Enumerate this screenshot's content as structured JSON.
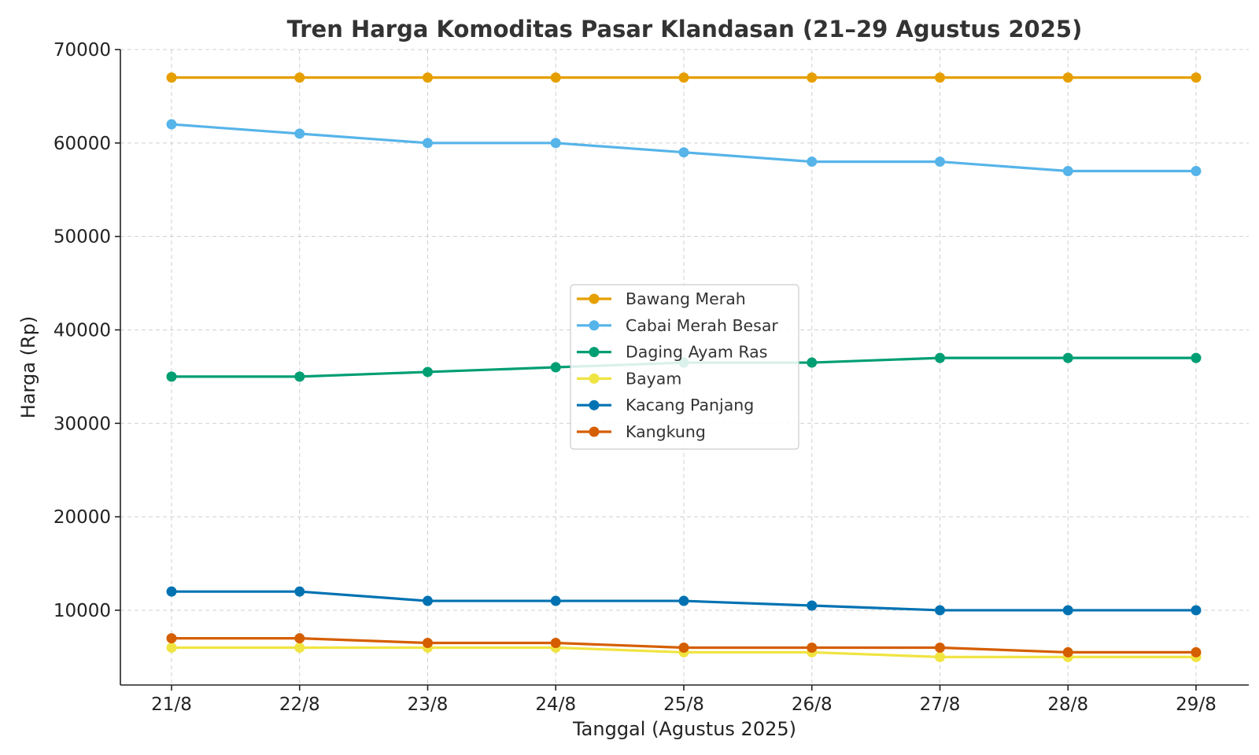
{
  "chart_data": {
    "type": "line",
    "title": "Tren Harga Komoditas Pasar Klandasan (21–29 Agustus 2025)",
    "xlabel": "Tanggal (Agustus 2025)",
    "ylabel": "Harga (Rp)",
    "categories": [
      "21/8",
      "22/8",
      "23/8",
      "24/8",
      "25/8",
      "26/8",
      "27/8",
      "28/8",
      "29/8"
    ],
    "ylim": [
      2000,
      70000
    ],
    "yticks": [
      "10000",
      "20000",
      "30000",
      "40000",
      "50000",
      "60000",
      "70000"
    ],
    "grid": true,
    "legend_position": "center",
    "series": [
      {
        "name": "Bawang Merah",
        "color": "#E69F00",
        "values": [
          67000,
          67000,
          67000,
          67000,
          67000,
          67000,
          67000,
          67000,
          67000
        ]
      },
      {
        "name": "Cabai Merah Besar",
        "color": "#56B4E9",
        "values": [
          62000,
          61000,
          60000,
          60000,
          59000,
          58000,
          58000,
          57000,
          57000
        ]
      },
      {
        "name": "Daging Ayam Ras",
        "color": "#009E73",
        "values": [
          35000,
          35000,
          35500,
          36000,
          36500,
          36500,
          37000,
          37000,
          37000
        ]
      },
      {
        "name": "Bayam",
        "color": "#F0E442",
        "values": [
          6000,
          6000,
          6000,
          6000,
          5500,
          5500,
          5000,
          5000,
          5000
        ]
      },
      {
        "name": "Kacang Panjang",
        "color": "#0072B2",
        "values": [
          12000,
          12000,
          11000,
          11000,
          11000,
          10500,
          10000,
          10000,
          10000
        ]
      },
      {
        "name": "Kangkung",
        "color": "#D55E00",
        "values": [
          7000,
          7000,
          6500,
          6500,
          6000,
          6000,
          6000,
          5500,
          5500
        ]
      }
    ]
  }
}
